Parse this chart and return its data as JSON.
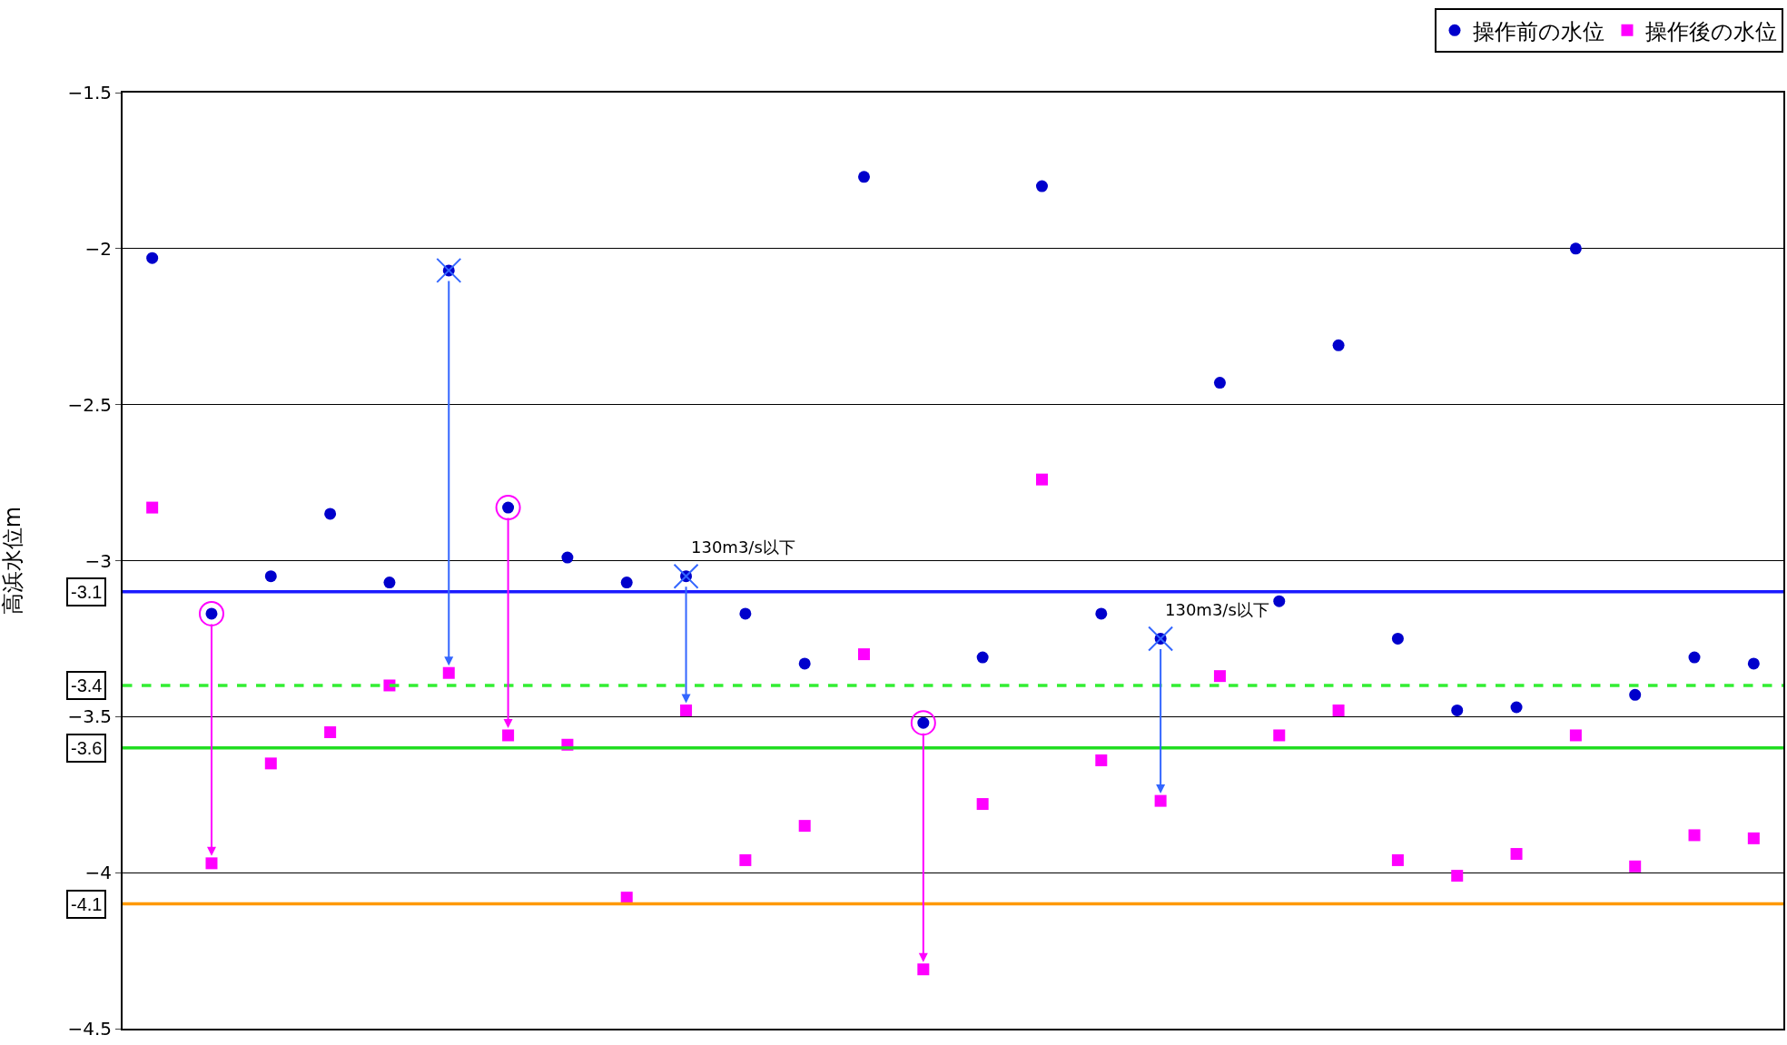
{
  "chart_data": {
    "type": "scatter",
    "ylabel": "高浜水位m",
    "categories": [
      null,
      null,
      null,
      null,
      null,
      null,
      null,
      null,
      null,
      null,
      null,
      null,
      null,
      null,
      null,
      null,
      null,
      null,
      null,
      null,
      null,
      null,
      null,
      null,
      null,
      null,
      null,
      null
    ],
    "series": [
      {
        "name": "操作前の水位",
        "color": "#0000cc",
        "marker": "circle",
        "values": [
          -2.03,
          -3.17,
          -3.05,
          -2.85,
          -3.07,
          -2.07,
          -2.83,
          -2.99,
          -3.07,
          -3.05,
          -3.17,
          -3.33,
          -1.77,
          -3.52,
          -3.31,
          -1.8,
          -3.17,
          -3.25,
          -2.43,
          -3.13,
          -2.31,
          -3.25,
          -3.48,
          -3.47,
          -2.0,
          -3.43,
          -3.31,
          -3.33
        ]
      },
      {
        "name": "操作後の水位",
        "color": "#ff00ff",
        "marker": "square",
        "values": [
          -2.83,
          -3.97,
          -3.65,
          -3.55,
          -3.4,
          -3.36,
          -3.56,
          -3.59,
          -4.08,
          -3.48,
          -3.96,
          -3.85,
          -3.3,
          -4.31,
          -3.78,
          -2.74,
          -3.64,
          -3.77,
          -3.37,
          -3.56,
          -3.48,
          -3.96,
          -4.01,
          -3.94,
          -3.56,
          -3.98,
          -3.88,
          -3.89
        ]
      },
      {
        "color": "#3366ff",
        "marker": "cross",
        "values": [
          null,
          null,
          null,
          null,
          null,
          -2.07,
          null,
          null,
          null,
          -3.05,
          null,
          null,
          null,
          null,
          null,
          null,
          null,
          -3.25,
          null,
          null,
          null,
          null,
          null,
          null,
          null,
          null,
          null,
          null
        ]
      },
      {
        "color": "#ff00ff",
        "marker": "circle",
        "values": [
          null,
          -3.17,
          null,
          null,
          null,
          null,
          -2.83,
          null,
          null,
          null,
          null,
          null,
          null,
          -3.52,
          null,
          null,
          null,
          null,
          null,
          null,
          null,
          null,
          null,
          null,
          null,
          null,
          null,
          null
        ]
      }
    ],
    "ylim": [
      -4.5,
      -1.5
    ],
    "yticks": [
      -1.5,
      -2,
      -2.5,
      -3,
      -3.5,
      -4,
      -4.5
    ],
    "grid": "y",
    "legend": "top right",
    "tick_labels": "y",
    "ref_lines": [
      {
        "axis": "y",
        "value": -3.1,
        "label": "-3.1",
        "color": "#1a1aff",
        "line_style": "solid"
      },
      {
        "axis": "y",
        "value": -3.4,
        "label": "-3.4",
        "color": "#33ee33",
        "line_style": "dashed"
      },
      {
        "axis": "y",
        "value": -3.6,
        "label": "-3.6",
        "color": "#22dd22",
        "line_style": "solid"
      },
      {
        "axis": "y",
        "value": -4.1,
        "label": "-4.1",
        "color": "#ff9900",
        "line_style": "solid"
      }
    ],
    "annotations": [
      "130m3/s以下",
      "130m3/s以下"
    ]
  }
}
